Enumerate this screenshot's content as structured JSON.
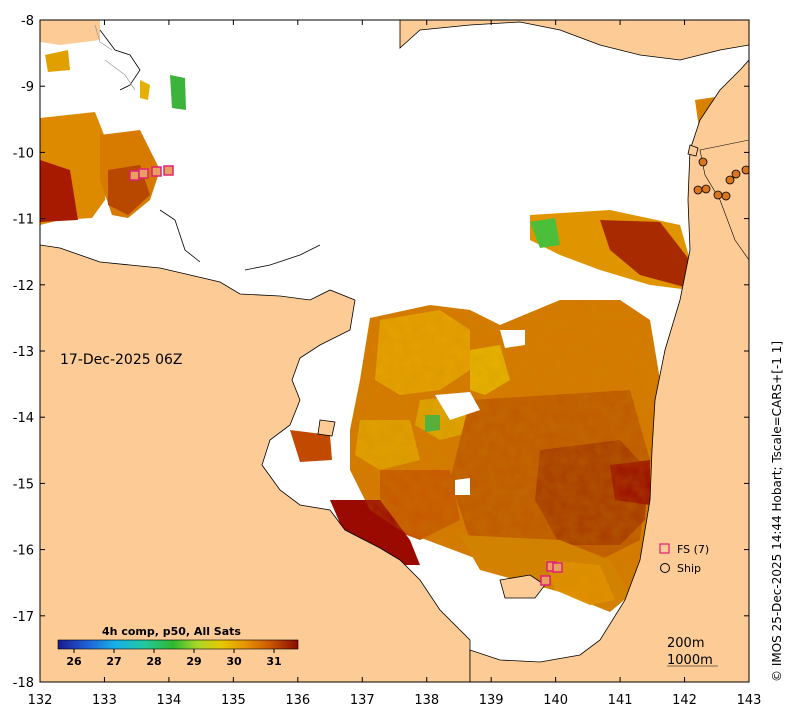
{
  "map": {
    "date_label": "17-Dec-2025 06Z",
    "credit": "© IMOS 25-Dec-2025 14:44 Hobart; Tscale=CARS+[-1 1]",
    "x_ticks": [
      "132",
      "133",
      "134",
      "135",
      "136",
      "137",
      "138",
      "139",
      "140",
      "141",
      "142",
      "143"
    ],
    "y_ticks": [
      "-8",
      "-9",
      "-10",
      "-11",
      "-12",
      "-13",
      "-14",
      "-15",
      "-16",
      "-17",
      "-18"
    ],
    "lon_range": [
      132,
      143
    ],
    "lat_range": [
      -18,
      -8
    ],
    "colors": {
      "land": "#fccb96",
      "sea_nodata": "#ffffff",
      "sst_warm": "#c45a00",
      "sst_hot": "#9b0a00",
      "sst_mid": "#e28a00",
      "sst_cool": "#e8b800",
      "sst_green": "#3cb43c",
      "fs_marker": "#e0207a"
    }
  },
  "legend": {
    "fs_label": "FS (7)",
    "ship_label": "Ship"
  },
  "colorbar": {
    "title": "4h comp, p50, All Sats",
    "ticks": [
      "26",
      "27",
      "28",
      "29",
      "30",
      "31"
    ]
  },
  "scale": {
    "line1": "200m",
    "line2": "1000m"
  }
}
